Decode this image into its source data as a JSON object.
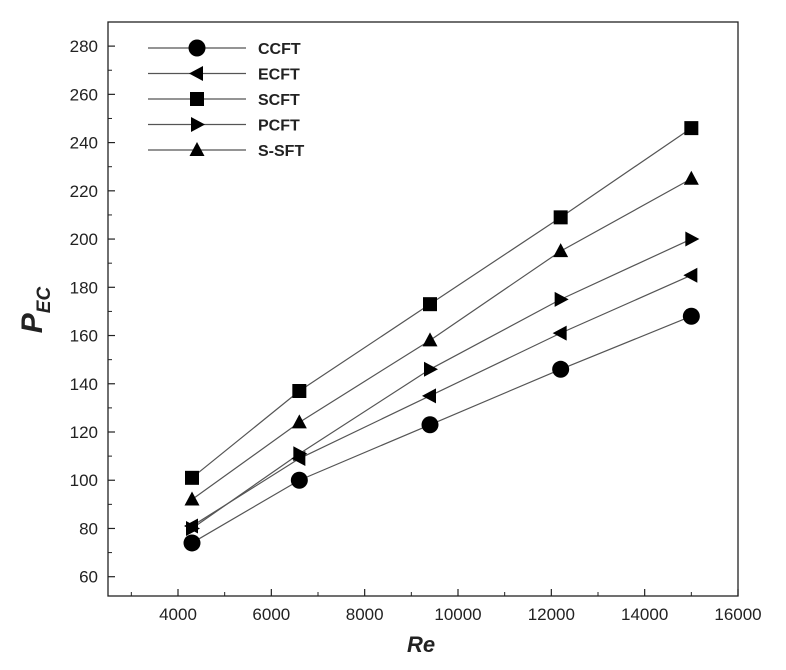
{
  "chart_data": {
    "type": "line",
    "xlabel": "Re",
    "ylabel_main": "P",
    "ylabel_sub": "EC",
    "xlim": [
      2500,
      16000
    ],
    "ylim": [
      52,
      290
    ],
    "xticks": [
      4000,
      6000,
      8000,
      10000,
      12000,
      14000,
      16000
    ],
    "xtick_labels": [
      "4000",
      "6000",
      "8000",
      "10000",
      "12000",
      "14000",
      "16000"
    ],
    "yticks": [
      60,
      80,
      100,
      120,
      140,
      160,
      180,
      200,
      220,
      240,
      260,
      280
    ],
    "ytick_labels": [
      "60",
      "80",
      "100",
      "120",
      "140",
      "160",
      "180",
      "200",
      "220",
      "240",
      "260",
      "280"
    ],
    "grid": false,
    "legend_position": "top-left",
    "x": [
      4300,
      6600,
      9400,
      12200,
      15000
    ],
    "series": [
      {
        "name": "CCFT",
        "marker": "circle",
        "values": [
          74,
          100,
          123,
          146,
          168
        ]
      },
      {
        "name": "ECFT",
        "marker": "triangle-left",
        "values": [
          81,
          109,
          135,
          161,
          185
        ]
      },
      {
        "name": "SCFT",
        "marker": "square",
        "values": [
          101,
          137,
          173,
          209,
          246
        ]
      },
      {
        "name": "PCFT",
        "marker": "triangle-right",
        "values": [
          80,
          111,
          146,
          175,
          200
        ]
      },
      {
        "name": "S-SFT",
        "marker": "triangle-up",
        "values": [
          92,
          124,
          158,
          195,
          225
        ]
      }
    ],
    "colors": {
      "line": "#555555",
      "marker": "#000000",
      "axis": "#222222"
    }
  }
}
